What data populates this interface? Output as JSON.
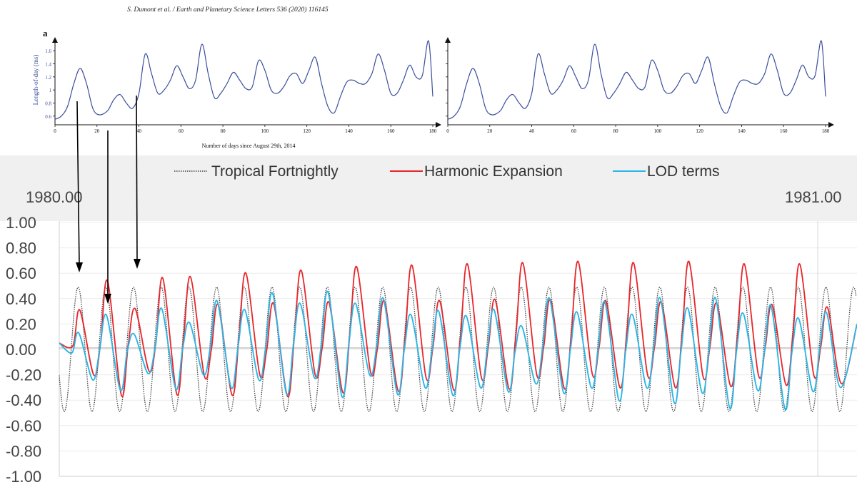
{
  "citation": "S. Dumont et al. / Earth and Planetary Science Letters 536 (2020) 116145",
  "chart_data": [
    {
      "type": "line",
      "panel_label": "a",
      "ylabel": "Length-of-day (ms)",
      "xlabel": "Number of days since August 29th, 2014",
      "xlim": [
        0,
        180
      ],
      "ylim": [
        0.5,
        1.7
      ],
      "x_ticks": [
        "0",
        "20",
        "40",
        "60",
        "80",
        "100",
        "120",
        "140",
        "160",
        "180"
      ],
      "y_ticks": [
        "0.6",
        "0.8",
        "1",
        "1.2",
        "1.4",
        "1.6"
      ],
      "series": [
        {
          "color": "#3a4f9c",
          "x": [
            0,
            3,
            6,
            9,
            12,
            15,
            18,
            21,
            25,
            28,
            31,
            34,
            37,
            40,
            43,
            46,
            49,
            52,
            55,
            58,
            61,
            64,
            67,
            70,
            73,
            76,
            79,
            82,
            85,
            88,
            91,
            94,
            97,
            100,
            103,
            106,
            109,
            112,
            115,
            118,
            121,
            124,
            127,
            130,
            133,
            136,
            139,
            142,
            145,
            148,
            151,
            154,
            157,
            160,
            163,
            166,
            169,
            172,
            175,
            178,
            180
          ],
          "y": [
            0.55,
            0.6,
            0.75,
            1.1,
            1.33,
            1.1,
            0.72,
            0.62,
            0.68,
            0.85,
            0.93,
            0.8,
            0.72,
            0.95,
            1.55,
            1.25,
            0.95,
            1.0,
            1.15,
            1.37,
            1.2,
            1.02,
            1.15,
            1.7,
            1.25,
            0.88,
            0.95,
            1.1,
            1.27,
            1.15,
            1.02,
            1.05,
            1.45,
            1.3,
            1.0,
            0.95,
            1.05,
            1.22,
            1.25,
            1.1,
            1.3,
            1.5,
            1.1,
            0.75,
            0.65,
            0.9,
            1.12,
            1.15,
            1.1,
            1.1,
            1.25,
            1.55,
            1.3,
            0.95,
            0.95,
            1.15,
            1.38,
            1.2,
            1.22,
            1.75,
            0.9
          ]
        }
      ]
    },
    {
      "type": "line",
      "ylabel": "",
      "xlabel": "",
      "xlim": [
        0,
        180
      ],
      "ylim": [
        0.5,
        1.7
      ],
      "x_ticks": [
        "0",
        "20",
        "40",
        "60",
        "80",
        "100",
        "120",
        "140",
        "160",
        "180"
      ],
      "y_ticks": [],
      "series": [
        {
          "color": "#3a4f9c",
          "x": [
            0,
            3,
            6,
            9,
            12,
            15,
            18,
            21,
            25,
            28,
            31,
            34,
            37,
            40,
            43,
            46,
            49,
            52,
            55,
            58,
            61,
            64,
            67,
            70,
            73,
            76,
            79,
            82,
            85,
            88,
            91,
            94,
            97,
            100,
            103,
            106,
            109,
            112,
            115,
            118,
            121,
            124,
            127,
            130,
            133,
            136,
            139,
            142,
            145,
            148,
            151,
            154,
            157,
            160,
            163,
            166,
            169,
            172,
            175,
            178,
            180
          ],
          "y": [
            0.55,
            0.6,
            0.75,
            1.1,
            1.33,
            1.1,
            0.72,
            0.62,
            0.68,
            0.85,
            0.93,
            0.8,
            0.72,
            0.95,
            1.55,
            1.25,
            0.95,
            1.0,
            1.15,
            1.37,
            1.2,
            1.02,
            1.15,
            1.7,
            1.25,
            0.88,
            0.95,
            1.1,
            1.27,
            1.15,
            1.02,
            1.05,
            1.45,
            1.3,
            1.0,
            0.95,
            1.05,
            1.22,
            1.25,
            1.1,
            1.3,
            1.5,
            1.1,
            0.75,
            0.65,
            0.9,
            1.12,
            1.15,
            1.1,
            1.1,
            1.25,
            1.55,
            1.3,
            0.95,
            0.95,
            1.15,
            1.38,
            1.2,
            1.22,
            1.75,
            0.9
          ]
        }
      ]
    },
    {
      "type": "line",
      "xlim": [
        1980.0,
        1981.0
      ],
      "ylim": [
        -1.0,
        1.0
      ],
      "x_labels": [
        "1980.00",
        "1981.00"
      ],
      "y_ticks": [
        "1.00",
        "0.80",
        "0.60",
        "0.40",
        "0.20",
        "0.00",
        "-0.20",
        "-0.40",
        "-0.60",
        "-0.80",
        "-1.00"
      ],
      "legend_position": "top",
      "grid": true,
      "series": [
        {
          "name": "Tropical Fortnightly",
          "color": "#444444",
          "style": "dotted",
          "period_days": 13.66,
          "amplitude": 0.49
        },
        {
          "name": "Harmonic Expansion",
          "color": "#e8252a",
          "style": "solid",
          "peak_values": [
            0.31,
            0.54,
            0.32,
            0.56,
            0.57,
            0.35,
            0.6,
            0.36,
            0.62,
            0.37,
            0.65,
            0.38,
            0.66,
            0.38,
            0.67,
            0.39,
            0.68,
            0.39,
            0.69,
            0.38,
            0.68,
            0.37,
            0.69,
            0.36,
            0.67,
            0.35,
            0.67,
            0.33
          ],
          "trough_values": [
            -0.2,
            -0.36,
            -0.17,
            -0.35,
            -0.21,
            -0.36,
            -0.2,
            -0.37,
            -0.2,
            -0.34,
            -0.18,
            -0.33,
            -0.22,
            -0.32,
            -0.22,
            -0.31,
            -0.2,
            -0.31,
            -0.19,
            -0.3,
            -0.2,
            -0.3,
            -0.21,
            -0.29,
            -0.2,
            -0.28,
            -0.2,
            -0.27
          ]
        },
        {
          "name": "LOD terms",
          "color": "#29b5e6",
          "style": "solid",
          "peak_values": [
            0.13,
            0.27,
            0.12,
            0.32,
            0.21,
            0.38,
            0.31,
            0.44,
            0.36,
            0.45,
            0.36,
            0.4,
            0.27,
            0.3,
            0.26,
            0.31,
            0.18,
            0.4,
            0.29,
            0.37,
            0.27,
            0.4,
            0.32,
            0.4,
            0.28,
            0.34,
            0.24,
            0.29
          ],
          "trough_values": [
            -0.24,
            -0.32,
            -0.19,
            -0.31,
            -0.2,
            -0.3,
            -0.24,
            -0.35,
            -0.22,
            -0.37,
            -0.2,
            -0.35,
            -0.3,
            -0.36,
            -0.3,
            -0.33,
            -0.27,
            -0.34,
            -0.3,
            -0.4,
            -0.3,
            -0.42,
            -0.34,
            -0.46,
            -0.32,
            -0.47,
            -0.33,
            -0.3
          ]
        }
      ],
      "annotations": [
        "arrow",
        "arrow",
        "arrow"
      ]
    }
  ],
  "colors": {
    "legend_band": "#f0f0f0",
    "gridline": "#e6e6e6",
    "top_curve": "#3a4f9c",
    "harmonic": "#e8252a",
    "lod": "#29b5e6",
    "tropical": "#444444"
  }
}
